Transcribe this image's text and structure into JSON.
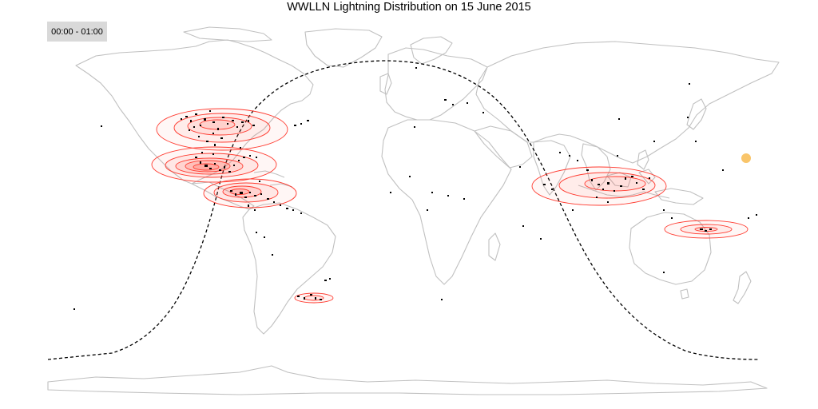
{
  "title": "WWLLN Lightning Distribution on 15 June 2015",
  "time_window": "00:00 - 01:00",
  "colors": {
    "land_outline": "#c0c0c0",
    "contour": "#ff3b30",
    "density_fill": "#ff6655",
    "stroke_points": "#000000",
    "terminator": "#000000",
    "sun": "#f9c56a"
  },
  "icons": [
    "sun-marker-icon"
  ],
  "map_data": {
    "projection": "equirectangular",
    "lon_range": [
      -180,
      180
    ],
    "lat_range": [
      -90,
      90
    ],
    "subsolar_point": {
      "lon": 165,
      "lat": 23.3
    },
    "day_night_terminator": "dashed",
    "density_clusters": [
      {
        "region": "eastern-united-states",
        "lon": -100,
        "lat": 36.5
      },
      {
        "region": "mexico-gulf",
        "lon": -103,
        "lat": 17.5
      },
      {
        "region": "central-america-caribbean",
        "lon": -81,
        "lat": 9.5
      },
      {
        "region": "south-america-south-atlantic",
        "lon": -61,
        "lat": -33.5
      },
      {
        "region": "southeast-asia-maritime-continent",
        "lon": 113,
        "lat": 11.5
      },
      {
        "region": "coral-sea-pacific",
        "lon": 141,
        "lat": -21.5
      }
    ]
  }
}
